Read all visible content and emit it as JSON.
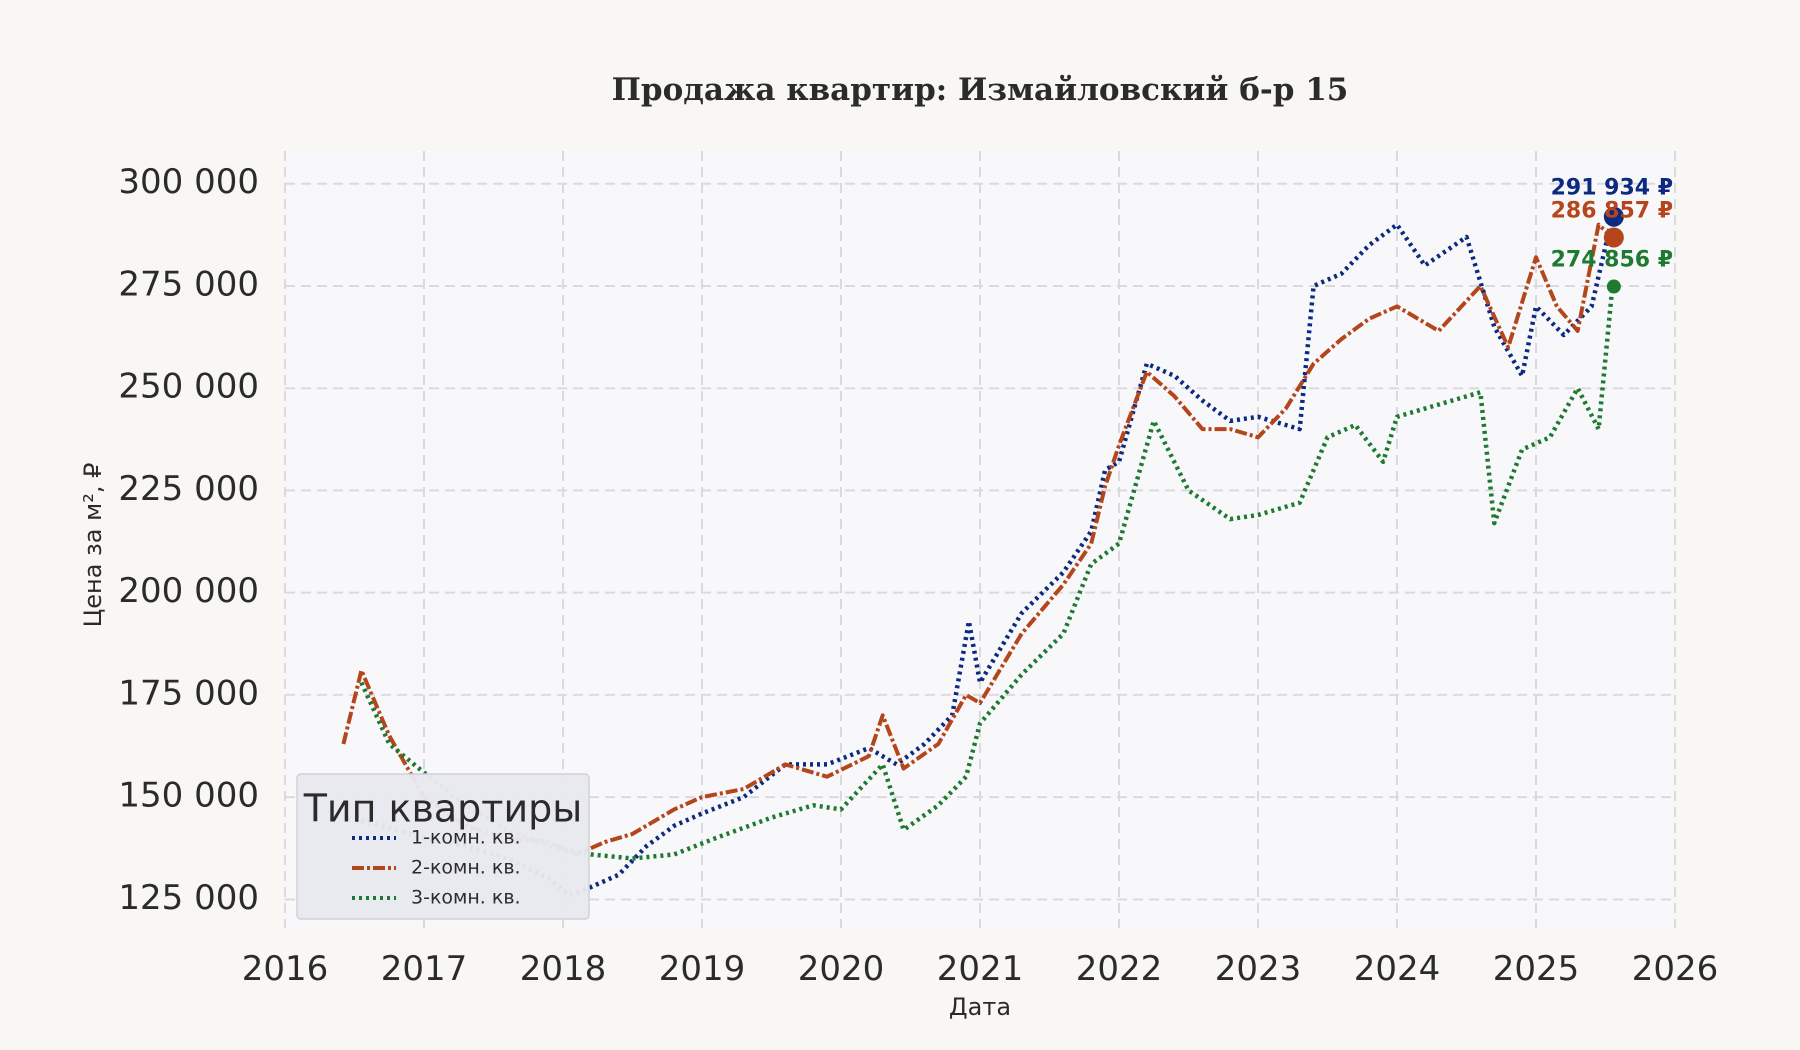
{
  "chart_data": {
    "type": "line",
    "title": "Продажа квартир: Измайловский б-р 15",
    "xlabel": "Дата",
    "ylabel": "Цена за м², ₽",
    "xlim": [
      2016,
      2026
    ],
    "ylim": [
      118000,
      308000
    ],
    "x_ticks": [
      "2016",
      "2017",
      "2018",
      "2019",
      "2020",
      "2021",
      "2022",
      "2023",
      "2024",
      "2025",
      "2026"
    ],
    "y_ticks": [
      125000,
      150000,
      175000,
      200000,
      225000,
      250000,
      275000,
      300000
    ],
    "y_tick_labels": [
      "125 000",
      "150 000",
      "175 000",
      "200 000",
      "225 000",
      "250 000",
      "275 000",
      "300 000"
    ],
    "grid": true,
    "legend": {
      "title": "Тип квартиры",
      "placement": "bottom-left"
    },
    "series": [
      {
        "name": "1-комн. кв.",
        "color": "#0b2a80",
        "dash": "dotted",
        "x": [
          2016.45,
          2016.7,
          2017.0,
          2017.3,
          2017.6,
          2017.9,
          2018.05,
          2018.2,
          2018.4,
          2018.6,
          2018.8,
          2019.0,
          2019.3,
          2019.6,
          2019.9,
          2020.2,
          2020.4,
          2020.6,
          2020.8,
          2020.92,
          2021.0,
          2021.3,
          2021.6,
          2021.8,
          2021.9,
          2022.0,
          2022.2,
          2022.4,
          2022.6,
          2022.8,
          2023.0,
          2023.3,
          2023.4,
          2023.6,
          2023.8,
          2024.0,
          2024.2,
          2024.5,
          2024.7,
          2024.9,
          2025.0,
          2025.2,
          2025.4,
          2025.55
        ],
        "y": [
          145000,
          143000,
          140000,
          138000,
          135000,
          130000,
          126000,
          128000,
          131000,
          138000,
          143000,
          146000,
          150000,
          158000,
          158000,
          162000,
          158000,
          163000,
          170000,
          193000,
          178000,
          195000,
          205000,
          215000,
          230000,
          232000,
          256000,
          253000,
          247000,
          242000,
          243000,
          240000,
          275000,
          278000,
          285000,
          290000,
          280000,
          287000,
          265000,
          253000,
          270000,
          263000,
          270000,
          291934
        ]
      },
      {
        "name": "2-комн. кв.",
        "color": "#b5451b",
        "dash": "dash-dot",
        "x": [
          2016.42,
          2016.55,
          2016.75,
          2017.0,
          2017.3,
          2017.6,
          2017.9,
          2018.1,
          2018.3,
          2018.5,
          2018.8,
          2019.0,
          2019.3,
          2019.6,
          2019.9,
          2020.2,
          2020.3,
          2020.45,
          2020.7,
          2020.9,
          2021.0,
          2021.3,
          2021.6,
          2021.8,
          2021.9,
          2022.0,
          2022.2,
          2022.4,
          2022.6,
          2022.8,
          2023.0,
          2023.2,
          2023.4,
          2023.6,
          2023.8,
          2024.0,
          2024.3,
          2024.6,
          2024.8,
          2025.0,
          2025.15,
          2025.3,
          2025.45,
          2025.55
        ],
        "y": [
          163000,
          181000,
          165000,
          150000,
          143000,
          140000,
          139000,
          136000,
          139000,
          141000,
          147000,
          150000,
          152000,
          158000,
          155000,
          160000,
          170000,
          157000,
          163000,
          175000,
          173000,
          190000,
          202000,
          212000,
          226000,
          236000,
          254000,
          248000,
          240000,
          240000,
          238000,
          245000,
          256000,
          262000,
          267000,
          270000,
          264000,
          275000,
          260000,
          282000,
          270000,
          264000,
          290000,
          286857
        ]
      },
      {
        "name": "3-комн. кв.",
        "color": "#1e7a30",
        "dash": "dotted",
        "x": [
          2016.55,
          2016.75,
          2017.0,
          2017.3,
          2017.6,
          2017.9,
          2018.2,
          2018.5,
          2018.8,
          2019.1,
          2019.5,
          2019.8,
          2020.0,
          2020.3,
          2020.45,
          2020.7,
          2020.9,
          2021.0,
          2021.3,
          2021.6,
          2021.8,
          2022.0,
          2022.25,
          2022.5,
          2022.8,
          2023.0,
          2023.3,
          2023.5,
          2023.7,
          2023.9,
          2024.0,
          2024.3,
          2024.6,
          2024.7,
          2024.9,
          2025.1,
          2025.3,
          2025.45,
          2025.55
        ],
        "y": [
          178000,
          163000,
          156000,
          148000,
          142000,
          138000,
          136000,
          135000,
          136000,
          140000,
          145000,
          148000,
          147000,
          158000,
          142000,
          148000,
          155000,
          168000,
          180000,
          190000,
          207000,
          212000,
          242000,
          225000,
          218000,
          219000,
          222000,
          238000,
          241000,
          232000,
          243000,
          246000,
          249000,
          217000,
          235000,
          238000,
          250000,
          240000,
          274856
        ]
      }
    ],
    "end_markers": [
      {
        "label": "291 934 ₽",
        "value": 291934,
        "color": "#0b2a80"
      },
      {
        "label": "286 857 ₽",
        "value": 286857,
        "color": "#b5451b"
      },
      {
        "label": "274 856 ₽",
        "value": 274856,
        "color": "#1e7a30"
      }
    ]
  }
}
